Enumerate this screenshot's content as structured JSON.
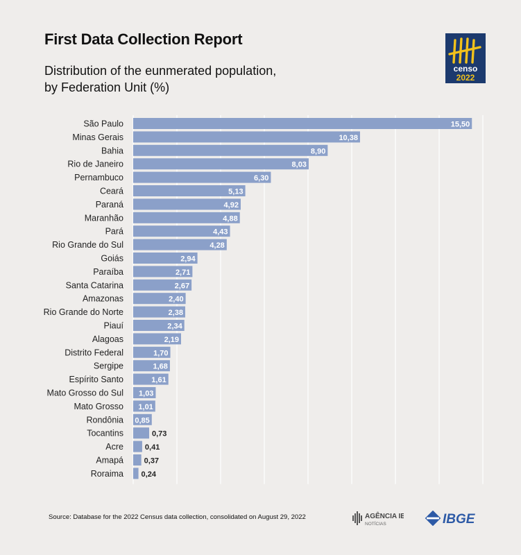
{
  "header": {
    "title": "First Data Collection Report",
    "subtitle_line1": "Distribution of the eunmerated population,",
    "subtitle_line2": "by Federation Unit (%)"
  },
  "logos": {
    "censo_word": "censo",
    "censo_year": "2022",
    "agencia_name": "AGÊNCIA IBGE",
    "agencia_sub": "NOTÍCIAS",
    "ibge": "IBGE"
  },
  "colors": {
    "bar": "#8ba0c9",
    "background": "#efedeb",
    "logo_bg": "#1c3a6e",
    "logo_accent": "#f2c21b",
    "ibge_blue": "#2d5aa6"
  },
  "footer": {
    "source": "Source: Database for the 2022 Census data collection, consolidated on August 29, 2022"
  },
  "chart_data": {
    "type": "bar",
    "orientation": "horizontal",
    "categories": [
      "São Paulo",
      "Minas Gerais",
      "Bahia",
      "Rio de Janeiro",
      "Pernambuco",
      "Ceará",
      "Paraná",
      "Maranhão",
      "Pará",
      "Rio Grande do Sul",
      "Goiás",
      "Paraíba",
      "Santa Catarina",
      "Amazonas",
      "Rio Grande do Norte",
      "Piauí",
      "Alagoas",
      "Distrito Federal",
      "Sergipe",
      "Espírito Santo",
      "Mato Grosso do Sul",
      "Mato Grosso",
      "Rondônia",
      "Tocantins",
      "Acre",
      "Amapá",
      "Roraima"
    ],
    "values": [
      15.5,
      10.38,
      8.9,
      8.03,
      6.3,
      5.13,
      4.92,
      4.88,
      4.43,
      4.28,
      2.94,
      2.71,
      2.67,
      2.4,
      2.38,
      2.34,
      2.19,
      1.7,
      1.68,
      1.61,
      1.03,
      1.01,
      0.85,
      0.73,
      0.41,
      0.37,
      0.24
    ],
    "value_labels": [
      "15,50",
      "10,38",
      "8,90",
      "8,03",
      "6,30",
      "5,13",
      "4,92",
      "4,88",
      "4,43",
      "4,28",
      "2,94",
      "2,71",
      "2,67",
      "2,40",
      "2,38",
      "2,34",
      "2,19",
      "1,70",
      "1,68",
      "1,61",
      "1,03",
      "1,01",
      "0,85",
      "0,73",
      "0,41",
      "0,37",
      "0,24"
    ],
    "xlim": [
      0,
      16
    ],
    "grid": true,
    "title": "Distribution of the eunmerated population, by Federation Unit (%)",
    "xlabel": "",
    "ylabel": ""
  }
}
